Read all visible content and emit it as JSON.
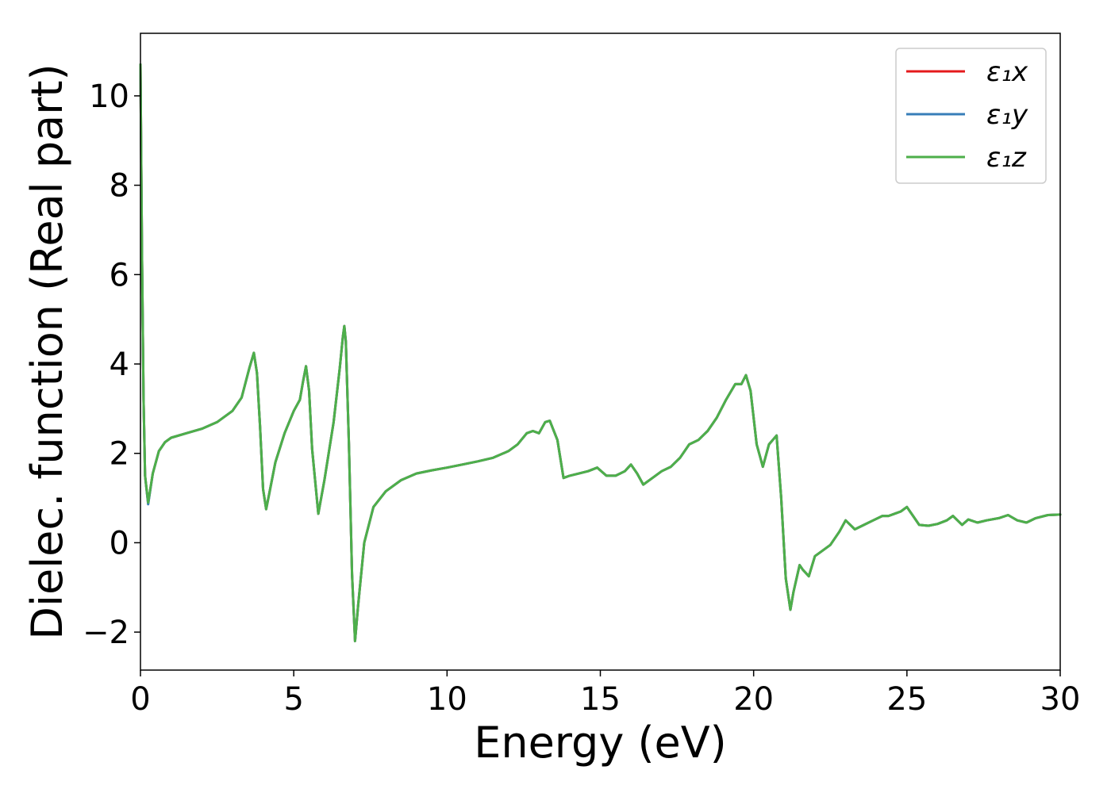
{
  "chart_data": {
    "type": "line",
    "xlabel": "Energy (eV)",
    "ylabel": "Dielec. function (Real part)",
    "xlim": [
      0,
      30
    ],
    "ylim": [
      -2.85,
      11.4
    ],
    "xticks": [
      0,
      5,
      10,
      15,
      20,
      25,
      30
    ],
    "yticks": [
      -2,
      0,
      2,
      4,
      6,
      8,
      10
    ],
    "xtick_labels": [
      "0",
      "5",
      "10",
      "15",
      "20",
      "25",
      "30"
    ],
    "ytick_labels": [
      "−2",
      "0",
      "2",
      "4",
      "6",
      "8",
      "10"
    ],
    "grid": false,
    "legend_position": "top-right",
    "x": [
      0.0,
      0.05,
      0.1,
      0.15,
      0.25,
      0.4,
      0.6,
      0.8,
      1.0,
      1.5,
      2.0,
      2.5,
      3.0,
      3.3,
      3.55,
      3.7,
      3.8,
      3.9,
      4.0,
      4.1,
      4.2,
      4.4,
      4.7,
      5.0,
      5.2,
      5.3,
      5.4,
      5.5,
      5.6,
      5.8,
      6.0,
      6.3,
      6.5,
      6.6,
      6.65,
      6.7,
      6.8,
      6.9,
      7.0,
      7.1,
      7.3,
      7.6,
      8.0,
      8.5,
      9.0,
      9.5,
      10.0,
      10.5,
      11.0,
      11.5,
      12.0,
      12.3,
      12.6,
      12.8,
      13.0,
      13.2,
      13.35,
      13.6,
      13.8,
      14.0,
      14.3,
      14.6,
      14.9,
      15.2,
      15.5,
      15.8,
      16.0,
      16.2,
      16.4,
      16.7,
      17.0,
      17.3,
      17.6,
      17.9,
      18.2,
      18.5,
      18.8,
      19.1,
      19.4,
      19.6,
      19.75,
      19.9,
      20.1,
      20.3,
      20.5,
      20.75,
      20.9,
      21.05,
      21.2,
      21.3,
      21.5,
      21.6,
      21.8,
      22.0,
      22.2,
      22.5,
      22.8,
      23.0,
      23.3,
      23.6,
      23.9,
      24.2,
      24.4,
      24.6,
      24.8,
      25.0,
      25.2,
      25.4,
      25.7,
      26.0,
      26.3,
      26.5,
      26.8,
      27.0,
      27.3,
      27.6,
      28.0,
      28.3,
      28.6,
      28.9,
      29.2,
      29.6,
      30.0
    ],
    "series": [
      {
        "name": "ε₁x",
        "color": "#e41a1c",
        "values": [
          10.7,
          6.5,
          3.2,
          1.5,
          0.88,
          1.55,
          2.05,
          2.25,
          2.35,
          2.45,
          2.55,
          2.7,
          2.95,
          3.25,
          3.9,
          4.25,
          3.8,
          2.6,
          1.2,
          0.75,
          1.1,
          1.8,
          2.45,
          2.95,
          3.2,
          3.6,
          3.95,
          3.4,
          2.1,
          0.65,
          1.4,
          2.7,
          3.9,
          4.6,
          4.85,
          4.5,
          2.2,
          -0.7,
          -2.2,
          -1.4,
          0.0,
          0.8,
          1.15,
          1.4,
          1.55,
          1.62,
          1.68,
          1.75,
          1.82,
          1.9,
          2.05,
          2.2,
          2.45,
          2.5,
          2.45,
          2.7,
          2.73,
          2.3,
          1.45,
          1.5,
          1.55,
          1.6,
          1.68,
          1.5,
          1.5,
          1.6,
          1.75,
          1.55,
          1.3,
          1.45,
          1.6,
          1.7,
          1.9,
          2.2,
          2.3,
          2.5,
          2.8,
          3.2,
          3.55,
          3.55,
          3.75,
          3.4,
          2.2,
          1.7,
          2.2,
          2.4,
          1.0,
          -0.8,
          -1.5,
          -1.1,
          -0.5,
          -0.6,
          -0.75,
          -0.3,
          -0.2,
          -0.05,
          0.25,
          0.5,
          0.3,
          0.4,
          0.5,
          0.6,
          0.6,
          0.65,
          0.7,
          0.8,
          0.6,
          0.4,
          0.38,
          0.42,
          0.5,
          0.6,
          0.4,
          0.52,
          0.45,
          0.5,
          0.55,
          0.62,
          0.5,
          0.45,
          0.55,
          0.62,
          0.63
        ]
      },
      {
        "name": "ε₁y",
        "color": "#377eb8",
        "values": [
          10.7,
          6.5,
          3.2,
          1.5,
          0.86,
          1.55,
          2.05,
          2.25,
          2.35,
          2.45,
          2.55,
          2.7,
          2.95,
          3.25,
          3.9,
          4.25,
          3.8,
          2.6,
          1.2,
          0.75,
          1.1,
          1.8,
          2.45,
          2.95,
          3.2,
          3.6,
          3.95,
          3.4,
          2.1,
          0.65,
          1.4,
          2.7,
          3.9,
          4.6,
          4.85,
          4.5,
          2.2,
          -0.7,
          -2.2,
          -1.4,
          0.0,
          0.8,
          1.15,
          1.4,
          1.55,
          1.62,
          1.68,
          1.75,
          1.82,
          1.9,
          2.05,
          2.2,
          2.45,
          2.5,
          2.45,
          2.7,
          2.73,
          2.3,
          1.45,
          1.5,
          1.55,
          1.6,
          1.68,
          1.5,
          1.5,
          1.6,
          1.75,
          1.55,
          1.3,
          1.45,
          1.6,
          1.7,
          1.9,
          2.2,
          2.3,
          2.5,
          2.8,
          3.2,
          3.55,
          3.55,
          3.75,
          3.4,
          2.2,
          1.7,
          2.2,
          2.4,
          1.0,
          -0.8,
          -1.5,
          -1.1,
          -0.5,
          -0.6,
          -0.75,
          -0.3,
          -0.2,
          -0.05,
          0.25,
          0.5,
          0.3,
          0.4,
          0.5,
          0.6,
          0.6,
          0.65,
          0.7,
          0.8,
          0.6,
          0.4,
          0.38,
          0.42,
          0.5,
          0.6,
          0.4,
          0.52,
          0.45,
          0.5,
          0.55,
          0.62,
          0.5,
          0.45,
          0.55,
          0.62,
          0.63
        ]
      },
      {
        "name": "ε₁z",
        "color": "#4daf4a",
        "values": [
          10.7,
          6.5,
          3.2,
          1.5,
          0.9,
          1.55,
          2.05,
          2.25,
          2.35,
          2.45,
          2.55,
          2.7,
          2.95,
          3.25,
          3.9,
          4.25,
          3.8,
          2.6,
          1.2,
          0.75,
          1.1,
          1.8,
          2.45,
          2.95,
          3.2,
          3.6,
          3.95,
          3.4,
          2.1,
          0.65,
          1.4,
          2.7,
          3.9,
          4.6,
          4.85,
          4.5,
          2.2,
          -0.7,
          -2.2,
          -1.4,
          0.0,
          0.8,
          1.15,
          1.4,
          1.55,
          1.62,
          1.68,
          1.75,
          1.82,
          1.9,
          2.05,
          2.2,
          2.45,
          2.5,
          2.45,
          2.7,
          2.73,
          2.3,
          1.45,
          1.5,
          1.55,
          1.6,
          1.68,
          1.5,
          1.5,
          1.6,
          1.75,
          1.55,
          1.3,
          1.45,
          1.6,
          1.7,
          1.9,
          2.2,
          2.3,
          2.5,
          2.8,
          3.2,
          3.55,
          3.55,
          3.75,
          3.4,
          2.2,
          1.7,
          2.2,
          2.4,
          1.0,
          -0.8,
          -1.5,
          -1.1,
          -0.5,
          -0.6,
          -0.75,
          -0.3,
          -0.2,
          -0.05,
          0.25,
          0.5,
          0.3,
          0.4,
          0.5,
          0.6,
          0.6,
          0.65,
          0.7,
          0.8,
          0.6,
          0.4,
          0.38,
          0.42,
          0.5,
          0.6,
          0.4,
          0.52,
          0.45,
          0.5,
          0.55,
          0.62,
          0.5,
          0.45,
          0.55,
          0.62,
          0.63
        ]
      }
    ]
  }
}
